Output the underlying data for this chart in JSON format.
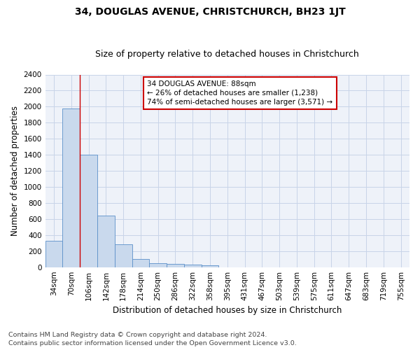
{
  "title": "34, DOUGLAS AVENUE, CHRISTCHURCH, BH23 1JT",
  "subtitle": "Size of property relative to detached houses in Christchurch",
  "xlabel": "Distribution of detached houses by size in Christchurch",
  "ylabel": "Number of detached properties",
  "footnote1": "Contains HM Land Registry data © Crown copyright and database right 2024.",
  "footnote2": "Contains public sector information licensed under the Open Government Licence v3.0.",
  "bar_labels": [
    "34sqm",
    "70sqm",
    "106sqm",
    "142sqm",
    "178sqm",
    "214sqm",
    "250sqm",
    "286sqm",
    "322sqm",
    "358sqm",
    "395sqm",
    "431sqm",
    "467sqm",
    "503sqm",
    "539sqm",
    "575sqm",
    "611sqm",
    "647sqm",
    "683sqm",
    "719sqm",
    "755sqm"
  ],
  "bar_values": [
    325,
    1980,
    1400,
    645,
    285,
    105,
    50,
    45,
    35,
    22,
    0,
    0,
    0,
    0,
    0,
    0,
    0,
    0,
    0,
    0,
    0
  ],
  "bar_color": "#c9d9ed",
  "bar_edge_color": "#5b8fc9",
  "grid_color": "#c8d4e8",
  "background_color": "#eef2f9",
  "annotation_line1": "34 DOUGLAS AVENUE: 88sqm",
  "annotation_line2": "← 26% of detached houses are smaller (1,238)",
  "annotation_line3": "74% of semi-detached houses are larger (3,571) →",
  "annotation_box_color": "#ffffff",
  "annotation_box_edge_color": "#cc0000",
  "red_line_bar_index": 1,
  "ylim_max": 2400,
  "yticks": [
    0,
    200,
    400,
    600,
    800,
    1000,
    1200,
    1400,
    1600,
    1800,
    2000,
    2200,
    2400
  ],
  "title_fontsize": 10,
  "subtitle_fontsize": 9,
  "axis_label_fontsize": 8.5,
  "tick_fontsize": 7.5,
  "annot_fontsize": 7.5,
  "footnote_fontsize": 6.8
}
